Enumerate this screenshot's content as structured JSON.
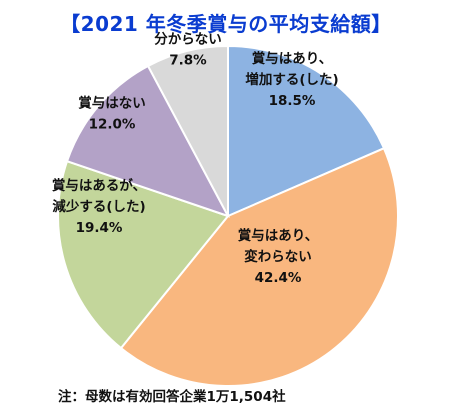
{
  "chart_data": {
    "type": "pie",
    "title": "【2021 年冬季賞与の平均支給額】",
    "note": "注：母数は有効回答企業1万1,504社",
    "slices": [
      {
        "label_lines": [
          "賞与はあり、",
          "増加する(した)"
        ],
        "value": 18.5,
        "value_label": "18.5%",
        "color": "#8db3e2"
      },
      {
        "label_lines": [
          "賞与はあり、",
          "変わらない"
        ],
        "value": 42.4,
        "value_label": "42.4%",
        "color": "#f9b77f"
      },
      {
        "label_lines": [
          "賞与はあるが、",
          "減少する(した)"
        ],
        "value": 19.4,
        "value_label": "19.4%",
        "color": "#c3d69b"
      },
      {
        "label_lines": [
          "賞与はない"
        ],
        "value": 12.0,
        "value_label": "12.0%",
        "color": "#b3a2c7"
      },
      {
        "label_lines": [
          "分からない"
        ],
        "value": 7.8,
        "value_label": "7.8%",
        "color": "#d9d9d9"
      }
    ],
    "start": "12 o'clock",
    "direction": "clockwise"
  }
}
